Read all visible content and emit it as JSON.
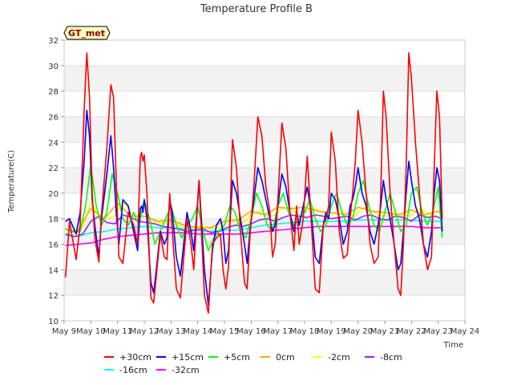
{
  "chart_data": {
    "type": "line",
    "title": "Temperature Profile B",
    "xlabel": "Time",
    "ylabel": "Temperature(C)",
    "badge": "GT_met",
    "ylim": [
      10,
      32
    ],
    "yticks": [
      10,
      12,
      14,
      16,
      18,
      20,
      22,
      24,
      26,
      28,
      30,
      32
    ],
    "xlim": [
      9,
      24
    ],
    "xticks": [
      9,
      10,
      11,
      12,
      13,
      14,
      15,
      16,
      17,
      18,
      19,
      20,
      21,
      22,
      23,
      24
    ],
    "xtick_labels": [
      "May 9",
      "May 10",
      "May 11",
      "May 12",
      "May 13",
      "May 14",
      "May 15",
      "May 16",
      "May 17",
      "May 18",
      "May 19",
      "May 20",
      "May 21",
      "May 22",
      "May 23",
      "May 24"
    ],
    "grid": "horizontal bands",
    "legend_position": "bottom",
    "series": [
      {
        "name": "+30cm",
        "color": "#ff0000",
        "x": [
          9.05,
          9.2,
          9.45,
          9.6,
          9.75,
          9.85,
          9.95,
          10.05,
          10.15,
          10.3,
          10.4,
          10.6,
          10.75,
          10.85,
          10.95,
          11.05,
          11.2,
          11.4,
          11.6,
          11.75,
          11.85,
          11.9,
          11.95,
          12.0,
          12.1,
          12.25,
          12.35,
          12.45,
          12.6,
          12.75,
          12.85,
          12.95,
          13.05,
          13.2,
          13.35,
          13.5,
          13.6,
          13.75,
          13.85,
          13.95,
          14.05,
          14.15,
          14.25,
          14.4,
          14.55,
          14.7,
          14.85,
          14.95,
          15.05,
          15.15,
          15.3,
          15.45,
          15.6,
          15.75,
          15.85,
          15.95,
          16.1,
          16.25,
          16.4,
          16.55,
          16.7,
          16.8,
          16.9,
          17.0,
          17.15,
          17.3,
          17.45,
          17.6,
          17.7,
          17.8,
          17.95,
          18.1,
          18.25,
          18.4,
          18.55,
          18.7,
          18.8,
          18.9,
          19.0,
          19.15,
          19.3,
          19.45,
          19.6,
          19.7,
          19.8,
          19.9,
          20.0,
          20.15,
          20.3,
          20.45,
          20.6,
          20.75,
          20.85,
          20.95,
          21.05,
          21.2,
          21.35,
          21.5,
          21.6,
          21.7,
          21.8,
          21.9,
          22.0,
          22.15,
          22.3,
          22.45,
          22.6,
          22.75,
          22.85,
          22.95,
          23.05,
          23.15
        ],
        "values": [
          13.4,
          17.8,
          14.8,
          17.5,
          26.5,
          31.0,
          27.5,
          20.0,
          16.5,
          14.6,
          18.5,
          23.5,
          28.5,
          27.5,
          21.0,
          15.0,
          14.5,
          18.5,
          17.5,
          16.0,
          22.8,
          23.2,
          22.5,
          23.0,
          20.0,
          11.8,
          11.4,
          13.5,
          16.8,
          15.0,
          14.8,
          20.0,
          17.0,
          12.5,
          11.8,
          15.5,
          18.0,
          16.0,
          14.0,
          17.5,
          21.0,
          16.5,
          12.0,
          10.6,
          16.0,
          16.5,
          16.8,
          14.0,
          12.5,
          14.2,
          24.2,
          22.0,
          17.0,
          13.0,
          12.5,
          16.5,
          20.5,
          26.0,
          24.5,
          20.5,
          18.5,
          15.0,
          16.0,
          19.5,
          25.5,
          23.5,
          18.5,
          15.5,
          19.0,
          16.0,
          18.0,
          22.9,
          17.8,
          12.5,
          12.2,
          17.5,
          18.0,
          19.0,
          24.8,
          22.5,
          17.0,
          14.9,
          15.2,
          18.0,
          20.0,
          22.5,
          26.5,
          24.0,
          20.0,
          16.0,
          14.5,
          15.0,
          20.0,
          28.0,
          26.0,
          20.0,
          16.0,
          12.5,
          12.0,
          16.0,
          22.0,
          31.0,
          29.0,
          24.0,
          20.0,
          16.0,
          14.0,
          15.0,
          22.0,
          28.0,
          26.0,
          18.0
        ]
      },
      {
        "name": "+15cm",
        "color": "#0000ff",
        "x": [
          9.05,
          9.2,
          9.45,
          9.6,
          9.75,
          9.85,
          9.95,
          10.05,
          10.15,
          10.3,
          10.4,
          10.6,
          10.75,
          10.85,
          10.95,
          11.05,
          11.2,
          11.4,
          11.6,
          11.75,
          11.85,
          11.9,
          11.95,
          12.0,
          12.1,
          12.25,
          12.35,
          12.45,
          12.6,
          12.75,
          12.85,
          12.95,
          13.05,
          13.2,
          13.35,
          13.5,
          13.6,
          13.75,
          13.85,
          13.95,
          14.05,
          14.15,
          14.25,
          14.4,
          14.55,
          14.7,
          14.85,
          14.95,
          15.05,
          15.15,
          15.3,
          15.45,
          15.6,
          15.75,
          15.85,
          15.95,
          16.1,
          16.25,
          16.4,
          16.55,
          16.7,
          16.8,
          16.9,
          17.0,
          17.15,
          17.3,
          17.45,
          17.6,
          17.7,
          17.8,
          17.95,
          18.1,
          18.25,
          18.4,
          18.55,
          18.7,
          18.8,
          18.9,
          19.0,
          19.15,
          19.3,
          19.45,
          19.6,
          19.7,
          19.8,
          19.9,
          20.0,
          20.15,
          20.3,
          20.45,
          20.6,
          20.75,
          20.85,
          20.95,
          21.05,
          21.2,
          21.35,
          21.5,
          21.6,
          21.7,
          21.8,
          21.9,
          22.0,
          22.15,
          22.3,
          22.45,
          22.6,
          22.75,
          22.85,
          22.95,
          23.05,
          23.15
        ],
        "values": [
          17.8,
          18.0,
          16.8,
          18.5,
          22.5,
          26.5,
          24.5,
          19.5,
          17.5,
          15.0,
          18.0,
          21.5,
          24.5,
          22.0,
          18.5,
          16.0,
          19.5,
          19.0,
          17.0,
          15.5,
          18.8,
          19.0,
          18.5,
          19.5,
          18.0,
          13.0,
          12.2,
          14.0,
          17.0,
          16.0,
          16.5,
          19.5,
          18.5,
          15.0,
          13.5,
          16.5,
          18.5,
          17.0,
          15.5,
          18.0,
          21.0,
          17.5,
          14.0,
          11.2,
          15.5,
          17.5,
          18.0,
          17.0,
          14.5,
          15.5,
          21.0,
          20.0,
          18.0,
          16.0,
          14.5,
          17.0,
          19.5,
          22.0,
          21.0,
          19.5,
          18.0,
          17.0,
          17.5,
          19.0,
          21.5,
          20.5,
          18.5,
          17.0,
          18.5,
          17.5,
          19.0,
          20.5,
          18.5,
          15.0,
          14.5,
          17.5,
          18.5,
          18.0,
          20.0,
          19.5,
          18.0,
          16.0,
          17.0,
          19.0,
          19.5,
          20.5,
          22.0,
          20.0,
          19.0,
          17.0,
          16.0,
          17.5,
          19.0,
          21.0,
          19.5,
          18.0,
          16.0,
          14.0,
          14.5,
          17.0,
          20.0,
          22.5,
          21.0,
          19.0,
          18.0,
          16.0,
          15.0,
          17.0,
          20.0,
          22.0,
          21.0,
          17.0
        ]
      },
      {
        "name": "+5cm",
        "color": "#00ff00",
        "x": [
          9.05,
          9.3,
          9.6,
          9.8,
          10.0,
          10.2,
          10.4,
          10.6,
          10.8,
          11.0,
          11.2,
          11.4,
          11.6,
          11.8,
          12.0,
          12.2,
          12.4,
          12.6,
          12.8,
          13.0,
          13.2,
          13.4,
          13.6,
          13.8,
          14.0,
          14.2,
          14.4,
          14.6,
          14.8,
          15.0,
          15.2,
          15.4,
          15.6,
          15.8,
          16.0,
          16.2,
          16.4,
          16.6,
          16.8,
          17.0,
          17.2,
          17.4,
          17.6,
          17.8,
          18.0,
          18.2,
          18.4,
          18.6,
          18.8,
          19.0,
          19.2,
          19.4,
          19.6,
          19.8,
          20.0,
          20.2,
          20.4,
          20.6,
          20.8,
          21.0,
          21.2,
          21.4,
          21.6,
          21.8,
          22.0,
          22.2,
          22.4,
          22.6,
          22.8,
          23.0,
          23.15
        ],
        "values": [
          17.2,
          17.0,
          17.0,
          19.0,
          22.2,
          19.0,
          17.5,
          18.5,
          21.5,
          20.0,
          18.0,
          17.5,
          18.5,
          17.5,
          19.5,
          18.0,
          16.0,
          17.0,
          18.0,
          19.0,
          17.5,
          16.5,
          17.5,
          18.0,
          19.0,
          17.0,
          15.5,
          16.5,
          17.0,
          17.5,
          19.0,
          18.5,
          17.0,
          16.5,
          18.0,
          20.0,
          19.0,
          17.5,
          17.0,
          19.0,
          20.0,
          18.5,
          17.5,
          18.0,
          18.5,
          19.5,
          18.0,
          17.0,
          17.5,
          19.0,
          20.0,
          18.5,
          17.5,
          18.0,
          20.0,
          21.0,
          19.0,
          17.5,
          17.0,
          18.5,
          20.0,
          18.5,
          17.0,
          17.5,
          20.0,
          20.5,
          18.5,
          17.5,
          18.5,
          20.5,
          16.5
        ]
      },
      {
        "name": "0cm",
        "color": "#ffa500",
        "x": [
          9.05,
          9.5,
          10.0,
          10.5,
          11.0,
          11.5,
          12.0,
          12.5,
          13.0,
          13.5,
          14.0,
          14.5,
          15.0,
          15.5,
          16.0,
          16.5,
          17.0,
          17.5,
          18.0,
          18.5,
          19.0,
          19.5,
          20.0,
          20.5,
          21.0,
          21.5,
          22.0,
          22.5,
          23.0,
          23.15
        ],
        "values": [
          17.2,
          17.0,
          18.8,
          18.0,
          19.2,
          18.2,
          18.2,
          17.8,
          17.9,
          17.5,
          17.3,
          17.3,
          17.8,
          17.9,
          18.6,
          18.3,
          18.9,
          18.8,
          18.9,
          18.6,
          18.5,
          18.3,
          18.9,
          18.6,
          18.5,
          18.3,
          18.7,
          18.3,
          18.6,
          18.4
        ]
      },
      {
        "name": "-2cm",
        "color": "#ffff00",
        "x": [
          9.05,
          9.4,
          9.7,
          10.0,
          10.3,
          10.6,
          10.9,
          11.2,
          11.5,
          11.8,
          12.1,
          12.4,
          12.7,
          13.0,
          13.3,
          13.6,
          13.9,
          14.2,
          14.5,
          14.8,
          15.1,
          15.4,
          15.7,
          16.0,
          16.3,
          16.6,
          16.9,
          17.2,
          17.5,
          17.8,
          18.1,
          18.4,
          18.7,
          19.0,
          19.3,
          19.6,
          19.9,
          20.2,
          20.5,
          20.8,
          21.1,
          21.4,
          21.7,
          22.0,
          22.3,
          22.6,
          22.9,
          23.15
        ],
        "values": [
          17.1,
          16.9,
          17.4,
          19.2,
          18.3,
          18.0,
          18.2,
          19.4,
          18.5,
          18.1,
          18.2,
          17.8,
          17.6,
          17.9,
          17.5,
          17.2,
          17.3,
          17.5,
          17.2,
          17.3,
          17.8,
          18.0,
          17.7,
          18.3,
          18.6,
          18.2,
          18.3,
          18.9,
          18.7,
          18.4,
          18.6,
          18.8,
          18.4,
          18.3,
          18.6,
          18.4,
          18.2,
          18.9,
          18.6,
          18.3,
          18.2,
          18.5,
          18.3,
          18.2,
          18.8,
          18.4,
          18.6,
          18.4
        ]
      },
      {
        "name": "-8cm",
        "color": "#a020f0",
        "x": [
          9.05,
          9.4,
          9.7,
          10.0,
          10.3,
          10.6,
          10.9,
          11.2,
          11.5,
          11.8,
          12.1,
          12.4,
          12.7,
          13.0,
          13.3,
          13.6,
          13.9,
          14.2,
          14.5,
          14.8,
          15.1,
          15.4,
          15.7,
          16.0,
          16.3,
          16.6,
          16.9,
          17.2,
          17.5,
          17.8,
          18.1,
          18.4,
          18.7,
          19.0,
          19.3,
          19.6,
          19.9,
          20.2,
          20.5,
          20.8,
          21.1,
          21.4,
          21.7,
          22.0,
          22.3,
          22.6,
          22.9,
          23.15
        ],
        "values": [
          16.8,
          16.6,
          16.8,
          17.8,
          18.2,
          17.7,
          17.6,
          18.3,
          18.1,
          17.8,
          17.7,
          17.6,
          17.4,
          17.3,
          17.2,
          17.0,
          17.1,
          17.2,
          16.9,
          17.0,
          17.3,
          17.5,
          17.4,
          17.6,
          17.9,
          18.0,
          17.8,
          18.1,
          18.3,
          18.2,
          18.1,
          18.3,
          18.2,
          18.0,
          18.1,
          18.2,
          17.9,
          18.2,
          18.3,
          18.0,
          17.9,
          18.2,
          18.1,
          17.8,
          18.3,
          18.1,
          18.2,
          18.0
        ]
      },
      {
        "name": "-16cm",
        "color": "#00ffff",
        "x": [
          9.05,
          9.5,
          10.0,
          10.5,
          11.0,
          11.5,
          12.0,
          12.5,
          13.0,
          13.5,
          14.0,
          14.5,
          15.0,
          15.5,
          16.0,
          16.5,
          17.0,
          17.5,
          18.0,
          18.5,
          19.0,
          19.5,
          20.0,
          20.5,
          21.0,
          21.5,
          22.0,
          22.5,
          23.0,
          23.15
        ],
        "values": [
          16.7,
          16.6,
          16.9,
          17.0,
          17.2,
          17.3,
          17.4,
          17.3,
          17.3,
          17.2,
          17.1,
          17.0,
          17.1,
          17.1,
          17.3,
          17.5,
          17.6,
          17.7,
          17.8,
          17.8,
          17.8,
          17.8,
          17.9,
          17.9,
          17.9,
          17.9,
          17.9,
          17.8,
          17.8,
          17.8
        ]
      },
      {
        "name": "-32cm",
        "color": "#ff00ff",
        "x": [
          9.05,
          9.5,
          10.0,
          10.5,
          11.0,
          11.5,
          12.0,
          12.5,
          13.0,
          13.5,
          14.0,
          14.5,
          15.0,
          15.5,
          16.0,
          16.5,
          17.0,
          17.5,
          18.0,
          18.5,
          19.0,
          19.5,
          20.0,
          20.5,
          21.0,
          21.5,
          22.0,
          22.5,
          23.0,
          23.15
        ],
        "values": [
          15.9,
          16.0,
          16.1,
          16.4,
          16.6,
          16.7,
          16.8,
          16.9,
          16.9,
          16.9,
          16.8,
          16.8,
          16.8,
          16.8,
          16.9,
          17.0,
          17.1,
          17.2,
          17.3,
          17.4,
          17.4,
          17.4,
          17.4,
          17.4,
          17.4,
          17.4,
          17.4,
          17.3,
          17.3,
          17.3
        ]
      }
    ]
  }
}
